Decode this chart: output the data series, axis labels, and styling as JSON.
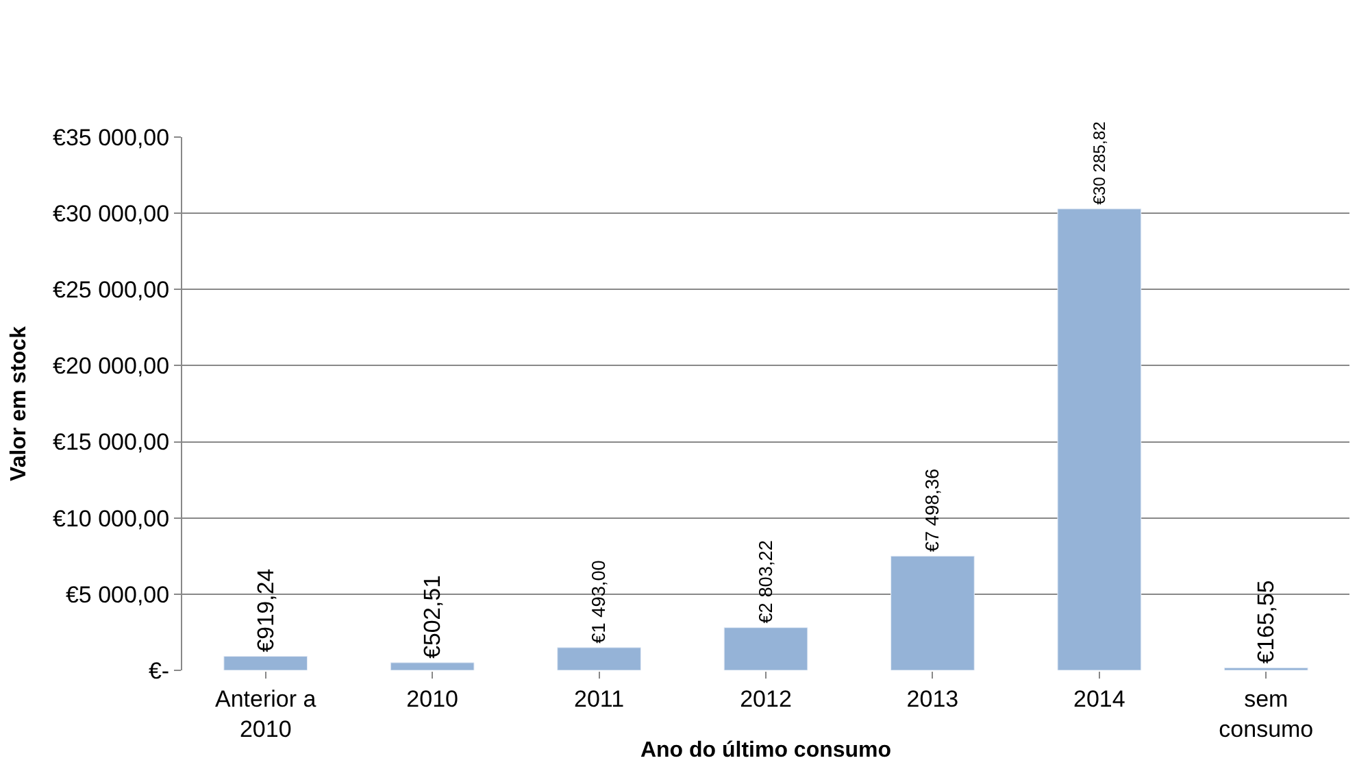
{
  "chart_data": {
    "type": "bar",
    "xlabel": "Ano do último consumo",
    "ylabel": "Valor em stock",
    "categories": [
      "Anterior a 2010",
      "2010",
      "2011",
      "2012",
      "2013",
      "2014",
      "sem consumo"
    ],
    "values": [
      919.24,
      502.51,
      1493.0,
      2803.22,
      7498.36,
      30285.82,
      165.55
    ],
    "value_labels": [
      "€919,24",
      "€502,51",
      "€1 493,00",
      "€2 803,22",
      "€7 498,36",
      "€30 285,82",
      "€165,55"
    ],
    "color": "#95b3d7",
    "ylim": [
      0,
      35000
    ],
    "yticks": [
      {
        "value": 0,
        "label": "€-"
      },
      {
        "value": 5000,
        "label": "€5 000,00"
      },
      {
        "value": 10000,
        "label": "€10 000,00"
      },
      {
        "value": 15000,
        "label": "€15 000,00"
      },
      {
        "value": 20000,
        "label": "€20 000,00"
      },
      {
        "value": 25000,
        "label": "€25 000,00"
      },
      {
        "value": 30000,
        "label": "€30 000,00"
      },
      {
        "value": 35000,
        "label": "€35 000,00"
      }
    ],
    "grid": "y",
    "legend": false
  }
}
